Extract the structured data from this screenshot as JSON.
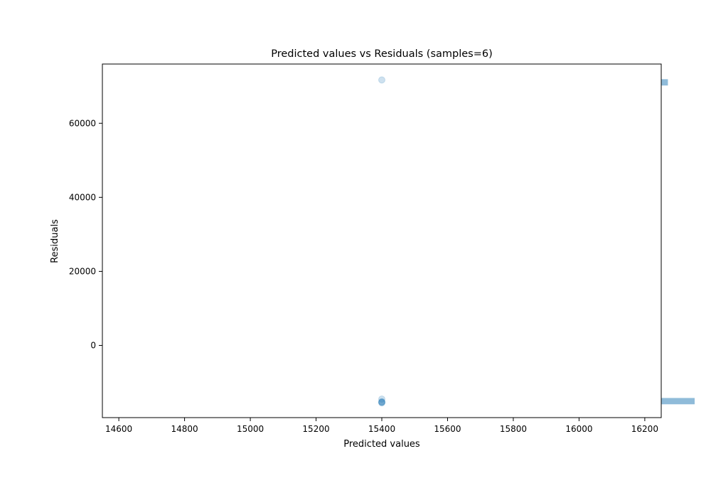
{
  "chart_data": {
    "type": "scatter",
    "title": "Predicted values vs Residuals (samples=6)",
    "xlabel": "Predicted values",
    "ylabel": "Residuals",
    "xlim": [
      14550,
      16250
    ],
    "ylim": [
      -19500,
      76000
    ],
    "xticks": [
      14600,
      14800,
      15000,
      15200,
      15400,
      15600,
      15800,
      16000,
      16200
    ],
    "yticks": [
      0,
      20000,
      40000,
      60000
    ],
    "grid": false,
    "legend": "none",
    "point_color": "#1f77b4",
    "points": [
      {
        "x": 15400,
        "y": 71700
      },
      {
        "x": 15400,
        "y": -14500
      },
      {
        "x": 15400,
        "y": -15200
      },
      {
        "x": 15400,
        "y": -15500
      },
      {
        "x": 15400,
        "y": -15400
      },
      {
        "x": 15400,
        "y": -15300
      }
    ],
    "marginal_histogram": {
      "orientation": "horizontal",
      "color": "#1f77b4",
      "bins": [
        {
          "y0": 70200,
          "y1": 71900,
          "count": 1
        },
        {
          "y0": -15900,
          "y1": -14200,
          "count": 5
        }
      ]
    }
  }
}
